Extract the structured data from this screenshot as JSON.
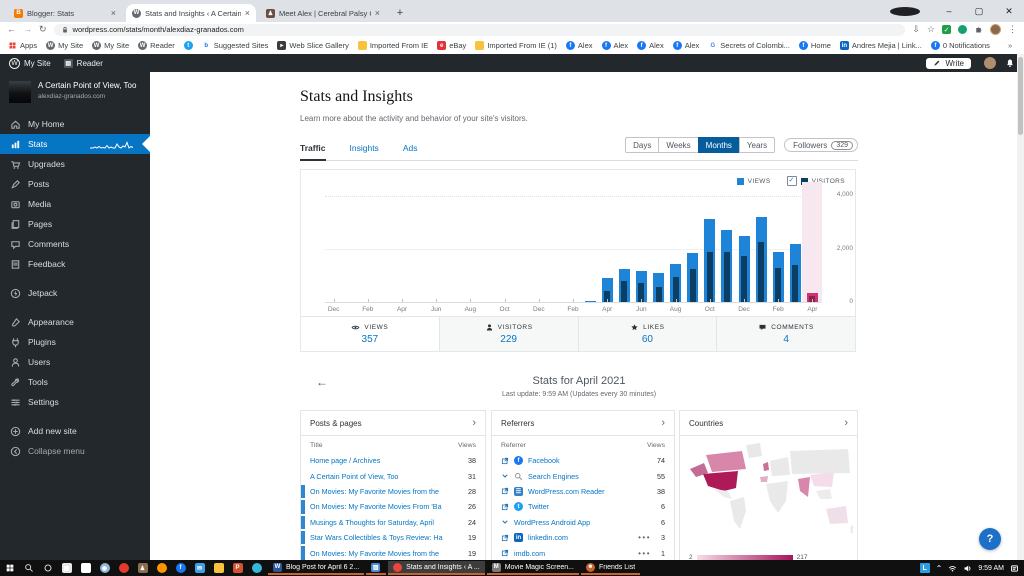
{
  "browser": {
    "tabs": [
      {
        "title": "Blogger: Stats",
        "icon": "blogger",
        "active": false
      },
      {
        "title": "Stats and Insights ‹ A Certain Po",
        "icon": "wordpress",
        "active": true
      },
      {
        "title": "Meet Alex | Cerebral Palsy Guida",
        "icon": "meetalex",
        "active": false
      }
    ],
    "new_tab_label": "+",
    "url": "wordpress.com/stats/month/alexdiaz-granados.com",
    "bookmarks": [
      {
        "label": "Apps",
        "icon": "apps"
      },
      {
        "label": "My Site",
        "icon": "wordpress"
      },
      {
        "label": "My Site",
        "icon": "wordpress"
      },
      {
        "label": "Reader",
        "icon": "wordpress"
      },
      {
        "label": "",
        "icon": "twitter"
      },
      {
        "label": "Suggested Sites",
        "icon": "bing"
      },
      {
        "label": "Web Slice Gallery",
        "icon": "webslice"
      },
      {
        "label": "Imported From IE",
        "icon": "folder"
      },
      {
        "label": "eBay",
        "icon": "ebay"
      },
      {
        "label": "Imported From IE (1)",
        "icon": "folder"
      },
      {
        "label": "Alex",
        "icon": "facebook"
      },
      {
        "label": "Alex",
        "icon": "facebook"
      },
      {
        "label": "Alex",
        "icon": "facebook"
      },
      {
        "label": "Alex",
        "icon": "facebook"
      },
      {
        "label": "Secrets of Colombi...",
        "icon": "google"
      },
      {
        "label": "Home",
        "icon": "facebook"
      },
      {
        "label": "Andres Mejia | Link...",
        "icon": "linkedin"
      },
      {
        "label": "0 Notifications",
        "icon": "facebook"
      }
    ],
    "overflow_chevron": "»",
    "other_bookmarks": "Other bookmarks"
  },
  "wpbar": {
    "my_site": "My Site",
    "reader": "Reader",
    "write": "Write"
  },
  "sidebar": {
    "site_name": "A Certain Point of View, Too",
    "site_domain": "alexdiaz-granados.com",
    "items": [
      {
        "label": "My Home",
        "icon": "home"
      },
      {
        "label": "Stats",
        "icon": "stats",
        "active": true,
        "sparkline": true
      },
      {
        "label": "Upgrades",
        "icon": "cart"
      },
      {
        "label": "Posts",
        "icon": "posts"
      },
      {
        "label": "Media",
        "icon": "media"
      },
      {
        "label": "Pages",
        "icon": "pages"
      },
      {
        "label": "Comments",
        "icon": "comments"
      },
      {
        "label": "Feedback",
        "icon": "feedback",
        "gap_after": true
      },
      {
        "label": "Jetpack",
        "icon": "jetpack",
        "gap_after": true
      },
      {
        "label": "Appearance",
        "icon": "appearance"
      },
      {
        "label": "Plugins",
        "icon": "plugins"
      },
      {
        "label": "Users",
        "icon": "users"
      },
      {
        "label": "Tools",
        "icon": "tools"
      },
      {
        "label": "Settings",
        "icon": "settings",
        "gap_after": true
      },
      {
        "label": "Add new site",
        "icon": "plus"
      },
      {
        "label": "Collapse menu",
        "icon": "collapse",
        "muted": true
      }
    ]
  },
  "main": {
    "title": "Stats and Insights",
    "subtitle": "Learn more about the activity and behavior of your site's visitors.",
    "nav_tabs": [
      {
        "label": "Traffic",
        "active": true
      },
      {
        "label": "Insights",
        "active": false
      },
      {
        "label": "Ads",
        "active": false
      }
    ],
    "period_buttons": [
      {
        "label": "Days",
        "active": false
      },
      {
        "label": "Weeks",
        "active": false
      },
      {
        "label": "Months",
        "active": true
      },
      {
        "label": "Years",
        "active": false
      }
    ],
    "followers_label": "Followers",
    "followers_count": "329",
    "legend": {
      "views": "VIEWS",
      "visitors": "VISITORS"
    },
    "summary": [
      {
        "label": "VIEWS",
        "value": "357",
        "icon": "eye",
        "active": true
      },
      {
        "label": "VISITORS",
        "value": "229",
        "icon": "person",
        "active": false
      },
      {
        "label": "LIKES",
        "value": "60",
        "icon": "star",
        "active": false
      },
      {
        "label": "COMMENTS",
        "value": "4",
        "icon": "comment",
        "active": false
      }
    ],
    "period_header": {
      "back": "←",
      "title": "Stats for April 2021",
      "update": "Last update: 9:59 AM (Updates every 30 minutes)"
    }
  },
  "panels": {
    "posts": {
      "title": "Posts & pages",
      "columns": [
        "Title",
        "Views"
      ],
      "rows": [
        {
          "title": "Home page / Archives",
          "views": "38",
          "bar": false
        },
        {
          "title": "A Certain Point of View, Too",
          "views": "31",
          "bar": false
        },
        {
          "title": "On Movies: My Favorite Movies from the",
          "views": "28",
          "bar": true
        },
        {
          "title": "On Movies: My Favorite Movies From 'Ba",
          "views": "26",
          "bar": true
        },
        {
          "title": "Musings & Thoughts for Saturday, April",
          "views": "24",
          "bar": true
        },
        {
          "title": "Star Wars Collectibles & Toys Review: Ha",
          "views": "19",
          "bar": true
        },
        {
          "title": "On Movies: My Favorite Movies from the",
          "views": "19",
          "bar": true
        }
      ]
    },
    "referrers": {
      "title": "Referrers",
      "columns": [
        "Referrer",
        "Views"
      ],
      "rows": [
        {
          "prefix": "external",
          "favicon": "facebook",
          "label": "Facebook",
          "views": "74",
          "more": false
        },
        {
          "prefix": "chevron",
          "favicon": "search",
          "label": "Search Engines",
          "views": "55",
          "more": false
        },
        {
          "prefix": "external",
          "favicon": "wpreader",
          "label": "WordPress.com Reader",
          "views": "38",
          "more": false
        },
        {
          "prefix": "external",
          "favicon": "twitter",
          "label": "Twitter",
          "views": "6",
          "more": false
        },
        {
          "prefix": "chevron",
          "favicon": "",
          "label": "WordPress Android App",
          "views": "6",
          "more": false
        },
        {
          "prefix": "external",
          "favicon": "linkedin",
          "label": "linkedin.com",
          "views": "3",
          "more": true
        },
        {
          "prefix": "external",
          "favicon": "",
          "label": "imdb.com",
          "views": "1",
          "more": true
        }
      ]
    },
    "countries": {
      "title": "Countries",
      "legend_min": "2",
      "legend_max": "217"
    }
  },
  "chart_data": {
    "type": "bar",
    "title": "Monthly views and visitors",
    "x_unit": "month",
    "x_tick_labels": [
      "Dec",
      "Feb",
      "Apr",
      "Jun",
      "Aug",
      "Oct",
      "Dec",
      "Feb",
      "Apr",
      "Jun",
      "Aug",
      "Oct",
      "Dec",
      "Feb",
      "Apr"
    ],
    "ylim": [
      0,
      4000
    ],
    "y_tick_labels": [
      "4,000",
      "2,000",
      "0"
    ],
    "legend_position": "top-right",
    "series": [
      {
        "name": "Views",
        "color": "#1d84d8",
        "values": [
          0,
          0,
          0,
          0,
          0,
          0,
          0,
          0,
          0,
          0,
          0,
          0,
          0,
          0,
          0,
          40,
          900,
          1230,
          1180,
          1100,
          1450,
          1850,
          3150,
          2700,
          2500,
          3200,
          1900,
          2200,
          357
        ]
      },
      {
        "name": "Visitors",
        "color": "#0a3e63",
        "values": [
          0,
          0,
          0,
          0,
          0,
          0,
          0,
          0,
          0,
          0,
          0,
          0,
          0,
          0,
          0,
          0,
          420,
          800,
          700,
          550,
          950,
          1250,
          1900,
          1900,
          1750,
          2250,
          1300,
          1400,
          229
        ]
      }
    ],
    "selected_index": 28,
    "selected_colors": {
      "views": "#cf3470",
      "visitors": "#8e2050",
      "highlight": "#f7e8ef"
    }
  },
  "help": {
    "label": "?"
  },
  "taskbar": {
    "pinned": [
      "start",
      "search",
      "cortana",
      "store",
      "home",
      "eye",
      "opera",
      "people",
      "firefox",
      "facebook",
      "mail",
      "explorer",
      "powerpoint",
      "edge"
    ],
    "windows": [
      {
        "label": "Blog Post for April 6 2...",
        "icon": "word",
        "active": false
      },
      {
        "label": "",
        "icon": "photos",
        "active": false
      },
      {
        "label": "Stats and Insights ‹ A ...",
        "icon": "chrome",
        "active": true
      },
      {
        "label": "Movie Magic Screen...",
        "icon": "moviemagic",
        "active": false
      },
      {
        "label": "Friends List",
        "icon": "friends",
        "active": false
      }
    ],
    "tray": {
      "lang": "L",
      "time": "9:59 AM"
    }
  }
}
